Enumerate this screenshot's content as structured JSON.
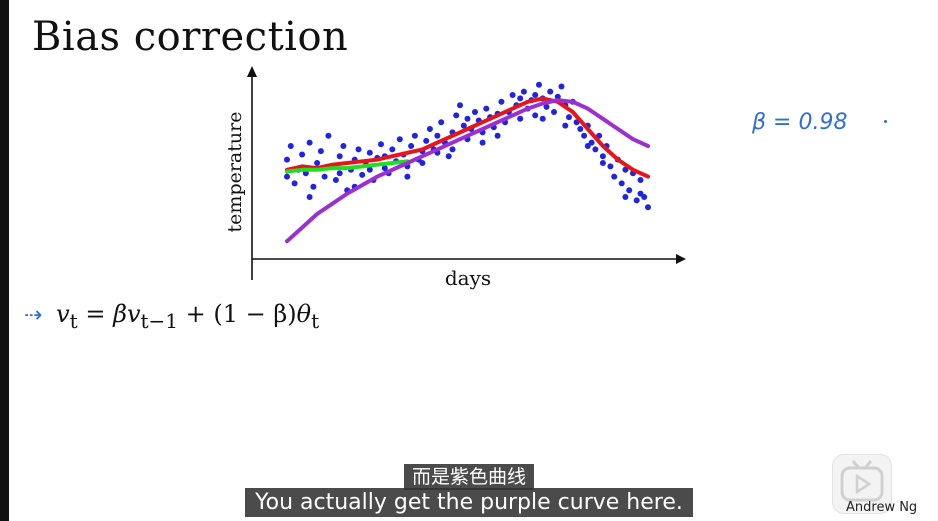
{
  "slide": {
    "title": "Bias correction",
    "formula": {
      "lhs": "v",
      "lhs_sub": "t",
      "beta": "β",
      "v": "v",
      "sub_prev": "t−1",
      "one_minus": "(1 − β)",
      "theta": "θ",
      "theta_sub": "t"
    },
    "beta_note": "β = 0.98"
  },
  "video": {
    "subtitle_cn": "而是紫色曲线",
    "subtitle_en": "You actually get the purple curve here.",
    "watermark": "Andrew Ng",
    "logo_icon": "play-tv-icon"
  },
  "colors": {
    "points": "#1f24e0",
    "red": "#e8141a",
    "green": "#22dd22",
    "purple": "#9b2fd0",
    "ink": "#2e6fd6"
  },
  "chart_data": {
    "type": "scatter",
    "xlabel": "days",
    "ylabel": "temperature",
    "xlim": [
      0,
      100
    ],
    "ylim": [
      0,
      100
    ],
    "ticks": "none",
    "grid": false,
    "legend": "none",
    "points": [
      [
        4,
        42
      ],
      [
        4,
        52
      ],
      [
        5,
        60
      ],
      [
        6,
        38
      ],
      [
        7,
        46
      ],
      [
        8,
        55
      ],
      [
        9,
        44
      ],
      [
        10,
        62
      ],
      [
        11,
        36
      ],
      [
        12,
        50
      ],
      [
        13,
        57
      ],
      [
        14,
        42
      ],
      [
        15,
        66
      ],
      [
        16,
        48
      ],
      [
        17,
        40
      ],
      [
        18,
        54
      ],
      [
        19,
        60
      ],
      [
        20,
        34
      ],
      [
        21,
        46
      ],
      [
        22,
        52
      ],
      [
        23,
        58
      ],
      [
        24,
        43
      ],
      [
        25,
        49
      ],
      [
        26,
        56
      ],
      [
        27,
        40
      ],
      [
        28,
        53
      ],
      [
        29,
        61
      ],
      [
        30,
        47
      ],
      [
        31,
        44
      ],
      [
        32,
        58
      ],
      [
        33,
        51
      ],
      [
        34,
        64
      ],
      [
        35,
        55
      ],
      [
        36,
        48
      ],
      [
        37,
        60
      ],
      [
        38,
        66
      ],
      [
        39,
        52
      ],
      [
        40,
        57
      ],
      [
        41,
        63
      ],
      [
        42,
        70
      ],
      [
        43,
        58
      ],
      [
        44,
        66
      ],
      [
        45,
        74
      ],
      [
        46,
        62
      ],
      [
        47,
        54
      ],
      [
        48,
        68
      ],
      [
        49,
        78
      ],
      [
        50,
        84
      ],
      [
        51,
        72
      ],
      [
        52,
        64
      ],
      [
        53,
        70
      ],
      [
        54,
        80
      ],
      [
        55,
        75
      ],
      [
        56,
        68
      ],
      [
        57,
        82
      ],
      [
        58,
        77
      ],
      [
        59,
        71
      ],
      [
        60,
        79
      ],
      [
        61,
        86
      ],
      [
        62,
        74
      ],
      [
        63,
        80
      ],
      [
        64,
        90
      ],
      [
        65,
        84
      ],
      [
        66,
        76
      ],
      [
        67,
        92
      ],
      [
        68,
        82
      ],
      [
        69,
        87
      ],
      [
        70,
        78
      ],
      [
        71,
        96
      ],
      [
        72,
        88
      ],
      [
        73,
        83
      ],
      [
        74,
        92
      ],
      [
        75,
        80
      ],
      [
        76,
        89
      ],
      [
        77,
        95
      ],
      [
        78,
        84
      ],
      [
        79,
        77
      ],
      [
        80,
        86
      ],
      [
        81,
        74
      ],
      [
        82,
        70
      ],
      [
        83,
        66
      ],
      [
        84,
        72
      ],
      [
        85,
        62
      ],
      [
        86,
        58
      ],
      [
        87,
        66
      ],
      [
        88,
        54
      ],
      [
        89,
        60
      ],
      [
        90,
        48
      ],
      [
        91,
        42
      ],
      [
        92,
        52
      ],
      [
        93,
        38
      ],
      [
        94,
        46
      ],
      [
        95,
        34
      ],
      [
        96,
        44
      ],
      [
        97,
        28
      ],
      [
        98,
        40
      ],
      [
        99,
        30
      ],
      [
        100,
        24
      ],
      [
        10,
        30
      ],
      [
        22,
        36
      ],
      [
        36,
        42
      ],
      [
        48,
        58
      ],
      [
        60,
        66
      ],
      [
        72,
        76
      ],
      [
        84,
        60
      ],
      [
        94,
        30
      ],
      [
        66,
        88
      ],
      [
        52,
        76
      ],
      [
        30,
        54
      ],
      [
        18,
        44
      ],
      [
        40,
        50
      ],
      [
        56,
        62
      ],
      [
        78,
        72
      ],
      [
        88,
        50
      ],
      [
        98,
        32
      ],
      [
        70,
        90
      ],
      [
        44,
        56
      ],
      [
        26,
        46
      ]
    ],
    "series": [
      {
        "name": "",
        "color": "red",
        "x": [
          4,
          8,
          12,
          16,
          20,
          24,
          28,
          32,
          36,
          40,
          44,
          48,
          52,
          56,
          60,
          64,
          68,
          72,
          76,
          80,
          84,
          88,
          92,
          96,
          100
        ],
        "y": [
          46,
          48,
          47,
          49,
          50,
          51,
          52,
          54,
          56,
          58,
          62,
          66,
          70,
          74,
          78,
          82,
          86,
          88,
          86,
          80,
          70,
          60,
          52,
          46,
          42
        ]
      },
      {
        "name": "",
        "color": "green",
        "x": [
          4,
          8,
          12,
          16,
          20,
          24,
          28,
          32,
          36
        ],
        "y": [
          45,
          46,
          46,
          47,
          47,
          48,
          49,
          50,
          51
        ]
      },
      {
        "name": "",
        "color": "purple",
        "x": [
          4,
          8,
          12,
          16,
          20,
          24,
          28,
          32,
          36,
          40,
          44,
          48,
          52,
          56,
          60,
          64,
          68,
          72,
          76,
          80,
          84,
          88,
          92,
          96,
          100
        ],
        "y": [
          4,
          12,
          20,
          26,
          32,
          37,
          42,
          46,
          50,
          54,
          58,
          62,
          66,
          70,
          74,
          78,
          82,
          85,
          87,
          86,
          82,
          76,
          70,
          64,
          60
        ]
      }
    ]
  }
}
